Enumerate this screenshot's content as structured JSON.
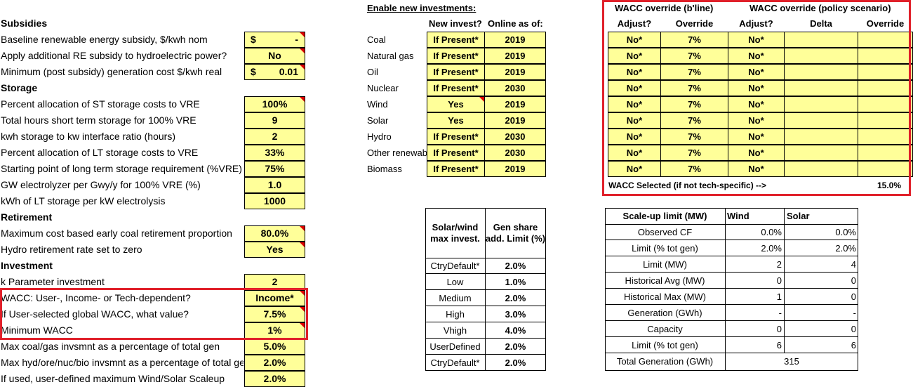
{
  "left": {
    "sections": {
      "subsidies": "Subsidies",
      "storage": "Storage",
      "retirement": "Retirement",
      "investment": "Investment"
    },
    "rows": [
      {
        "label": "Baseline renewable energy subsidy, $/kwh nom",
        "cur": "$",
        "value": "-"
      },
      {
        "label": "Apply additional RE subsidy to hydroelectric power?",
        "value": "No"
      },
      {
        "label": "Minimum (post subsidy) generation cost $/kwh real",
        "cur": "$",
        "value": "0.01"
      },
      {
        "label": "Percent allocation of ST storage costs to VRE",
        "value": "100%"
      },
      {
        "label": "Total hours short term storage for 100% VRE",
        "value": "9"
      },
      {
        "label": "kwh storage to kw interface ratio (hours)",
        "value": "2"
      },
      {
        "label": "Percent allocation of LT storage costs to VRE",
        "value": "33%"
      },
      {
        "label": "Starting point of long term storage requirement (%VRE)",
        "value": "75%"
      },
      {
        "label": "GW electrolyzer per Gwy/y for 100% VRE (%)",
        "value": "1.0"
      },
      {
        "label": "kWh of LT storage per kW electrolysis",
        "value": "1000"
      },
      {
        "label": "Maximum cost based early coal retirement proportion",
        "value": "80.0%"
      },
      {
        "label": "Hydro retirement rate set to zero",
        "value": "Yes"
      },
      {
        "label": "k Parameter investment",
        "value": "2"
      },
      {
        "label": "WACC: User-, Income- or Tech-dependent?",
        "value": "Income*"
      },
      {
        "label": "If User-selected global WACC, what value?",
        "value": "7.5%"
      },
      {
        "label": "Minimum WACC",
        "value": "1%"
      },
      {
        "label": "Max coal/gas invsmnt as a percentage of total gen",
        "value": "5.0%"
      },
      {
        "label": "Max hyd/ore/nuc/bio invsmnt as a percentage of total gen",
        "value": "2.0%"
      },
      {
        "label": "If used, user-defined maximum Wind/Solar Scaleup",
        "value": "2.0%"
      }
    ]
  },
  "invest": {
    "title": "Enable new investments:",
    "col_new": "New invest?",
    "col_online": "Online as of:",
    "rows": [
      {
        "tech": "Coal",
        "new": "If Present*",
        "online": "2019"
      },
      {
        "tech": "Natural gas",
        "new": "If Present*",
        "online": "2019"
      },
      {
        "tech": "Oil",
        "new": "If Present*",
        "online": "2019"
      },
      {
        "tech": "Nuclear",
        "new": "If Present*",
        "online": "2030"
      },
      {
        "tech": "Wind",
        "new": "Yes",
        "online": "2019"
      },
      {
        "tech": "Solar",
        "new": "Yes",
        "online": "2019"
      },
      {
        "tech": "Hydro",
        "new": "If Present*",
        "online": "2030"
      },
      {
        "tech": "Other renewables",
        "new": "If Present*",
        "online": "2030"
      },
      {
        "tech": "Biomass",
        "new": "If Present*",
        "online": "2019"
      }
    ]
  },
  "wacc": {
    "head_bline": "WACC override (b'line)",
    "head_policy": "WACC override (policy scenario)",
    "col_adjust1": "Adjust?",
    "col_override1": "Override",
    "col_adjust2": "Adjust?",
    "col_delta": "Delta",
    "col_override2": "Override",
    "rows": [
      {
        "adjust1": "No*",
        "override1": "7%",
        "adjust2": "No*"
      },
      {
        "adjust1": "No*",
        "override1": "7%",
        "adjust2": "No*"
      },
      {
        "adjust1": "No*",
        "override1": "7%",
        "adjust2": "No*"
      },
      {
        "adjust1": "No*",
        "override1": "7%",
        "adjust2": "No*"
      },
      {
        "adjust1": "No*",
        "override1": "7%",
        "adjust2": "No*"
      },
      {
        "adjust1": "No*",
        "override1": "7%",
        "adjust2": "No*"
      },
      {
        "adjust1": "No*",
        "override1": "7%",
        "adjust2": "No*"
      },
      {
        "adjust1": "No*",
        "override1": "7%",
        "adjust2": "No*"
      },
      {
        "adjust1": "No*",
        "override1": "7%",
        "adjust2": "No*"
      }
    ],
    "selected_label": "WACC Selected (if not tech-specific) -->",
    "selected_value": "15.0%"
  },
  "solarwind": {
    "col1": "Solar/wind max invest.",
    "col2": "Gen share add. Limit (%)",
    "rows": [
      {
        "name": "CtryDefault*",
        "value": "2.0%"
      },
      {
        "name": "Low",
        "value": "1.0%"
      },
      {
        "name": "Medium",
        "value": "2.0%"
      },
      {
        "name": "High",
        "value": "3.0%"
      },
      {
        "name": "Vhigh",
        "value": "4.0%"
      },
      {
        "name": "UserDefined",
        "value": "2.0%"
      },
      {
        "name": "CtryDefault*",
        "value": "2.0%"
      }
    ]
  },
  "scaleup": {
    "col0": "Scale-up limit (MW)",
    "col1": "Wind",
    "col2": "Solar",
    "rows": [
      {
        "name": "Observed CF",
        "wind": "0.0%",
        "solar": "0.0%"
      },
      {
        "name": "Limit (% tot gen)",
        "wind": "2.0%",
        "solar": "2.0%"
      },
      {
        "name": "Limit (MW)",
        "wind": "2",
        "solar": "4"
      },
      {
        "name": "Historical Avg (MW)",
        "wind": "0",
        "solar": "0"
      },
      {
        "name": "Historical Max (MW)",
        "wind": "1",
        "solar": "0"
      },
      {
        "name": "Generation (GWh)",
        "wind": "-",
        "solar": "-"
      },
      {
        "name": "Capacity",
        "wind": "0",
        "solar": "0"
      },
      {
        "name": "Limit (% tot gen)",
        "wind": "6",
        "solar": "6"
      }
    ],
    "total_label": "Total Generation (GWh)",
    "total_value": "315"
  },
  "colors": {
    "input_fill": "#ffff99",
    "highlight_border": "#e0202a",
    "comment_marker": "#e00000"
  }
}
